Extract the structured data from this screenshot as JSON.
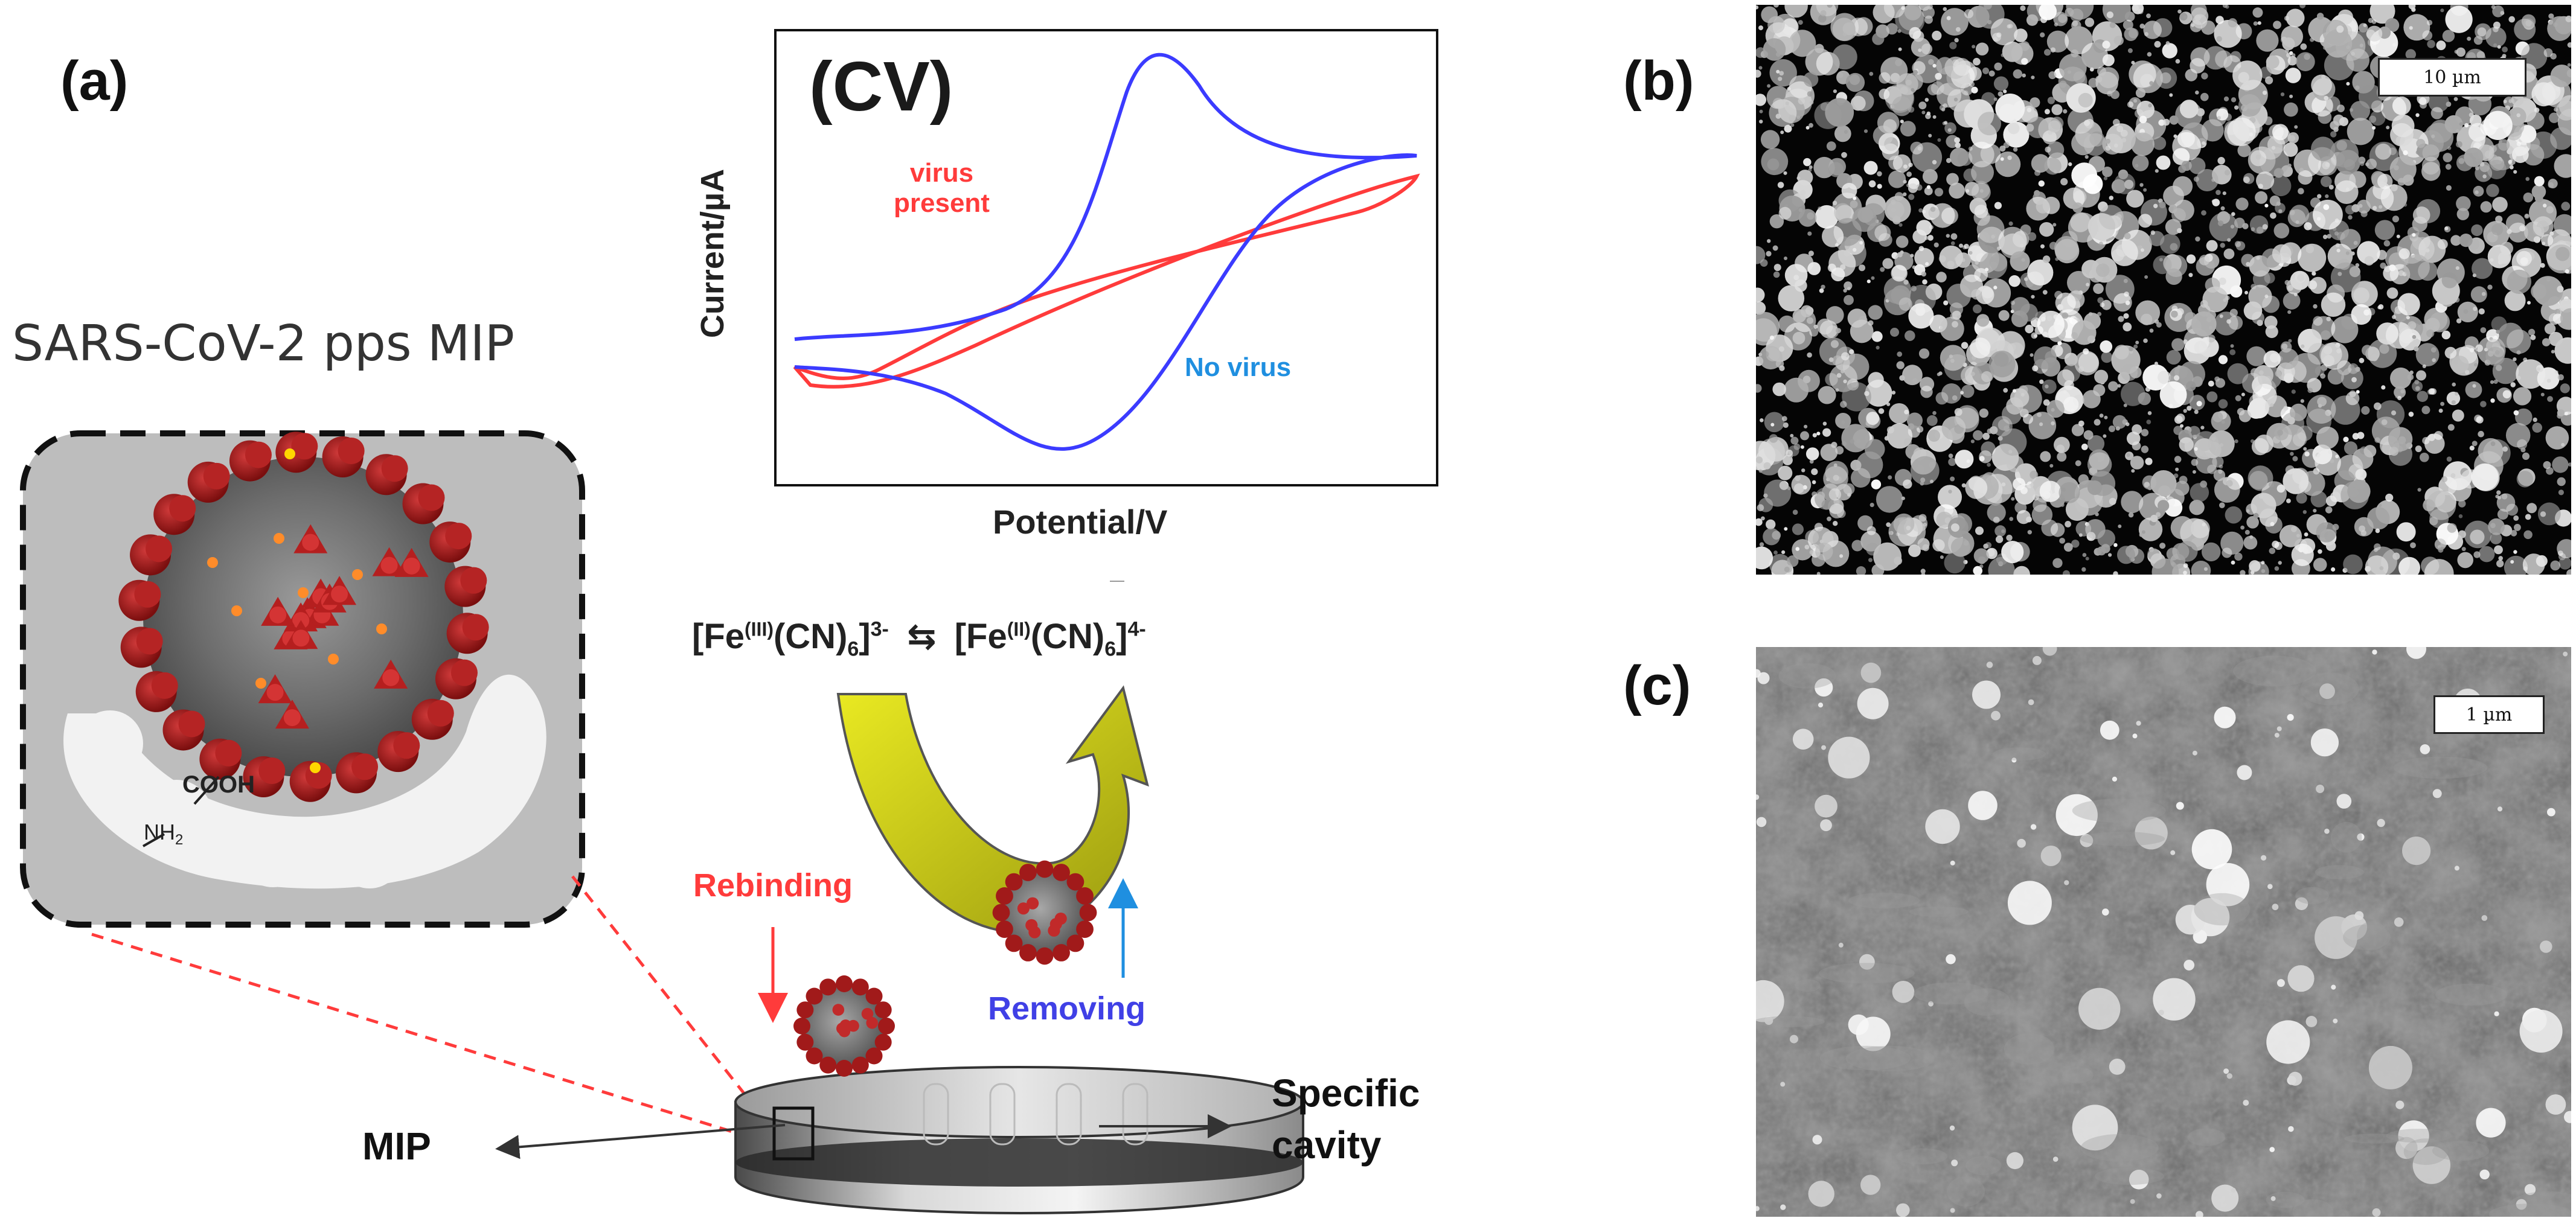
{
  "panels": {
    "a": "(a)",
    "b": "(b)",
    "c": "(c)"
  },
  "mip_title": "SARS-CoV-2 pps MIP",
  "groups": {
    "cooh": "COOH",
    "nh2": "NH",
    "nh2_sub": "2"
  },
  "cv": {
    "tag": "(CV)",
    "xlabel": "Potential/V",
    "ylabel": "Current/µA",
    "virus_present_line1": "virus",
    "virus_present_line2": "present",
    "no_virus": "No virus",
    "colors": {
      "virus_present": "#ff3b3b",
      "no_virus": "#3b3bff"
    }
  },
  "redox": {
    "fe3_base": "[Fe",
    "fe3_ox": "(III)",
    "fe3_mid": "(CN)",
    "fe3_sub": "6",
    "fe3_close": "]",
    "fe3_charge": "3-",
    "equilibrium": "⇆",
    "fe2_base": "[Fe",
    "fe2_ox": "(II)",
    "fe2_mid": "(CN)",
    "fe2_sub": "6",
    "fe2_close": "]",
    "fe2_charge": "4-"
  },
  "labels": {
    "rebinding": "Rebinding",
    "removing": "Removing",
    "mip": "MIP",
    "specific_line1": "Specific",
    "specific_line2": "cavity"
  },
  "scalebars": {
    "b": "10 µm",
    "c": "1 µm"
  }
}
